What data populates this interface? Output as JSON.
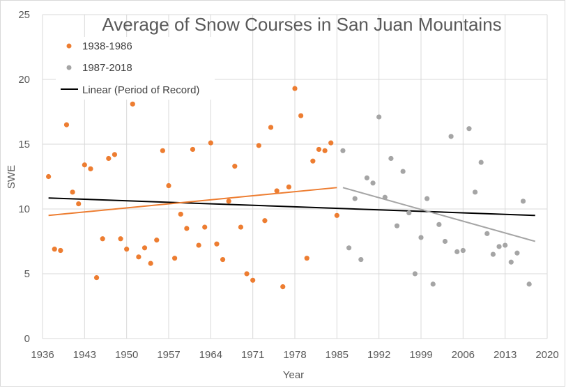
{
  "chart_data": {
    "type": "scatter",
    "title": "Average of Snow Courses in San Juan Mountains",
    "xlabel": "Year",
    "ylabel": "SWE",
    "xlim": [
      1936,
      2020
    ],
    "ylim": [
      0,
      25
    ],
    "x_ticks": [
      1936,
      1943,
      1950,
      1957,
      1964,
      1971,
      1978,
      1985,
      1992,
      1999,
      2006,
      2013,
      2020
    ],
    "y_ticks": [
      0,
      5,
      10,
      15,
      20,
      25
    ],
    "grid": {
      "x": true,
      "y": true
    },
    "legend_position": "top-left",
    "series": [
      {
        "name": "1938-1986",
        "color": "#ED7D31",
        "points": [
          [
            1937,
            12.5
          ],
          [
            1938,
            6.9
          ],
          [
            1939,
            6.8
          ],
          [
            1940,
            16.5
          ],
          [
            1941,
            11.3
          ],
          [
            1942,
            10.4
          ],
          [
            1943,
            13.4
          ],
          [
            1944,
            13.1
          ],
          [
            1945,
            4.7
          ],
          [
            1946,
            7.7
          ],
          [
            1947,
            13.9
          ],
          [
            1948,
            14.2
          ],
          [
            1949,
            7.7
          ],
          [
            1950,
            6.9
          ],
          [
            1951,
            18.1
          ],
          [
            1952,
            6.3
          ],
          [
            1953,
            7.0
          ],
          [
            1954,
            5.8
          ],
          [
            1955,
            7.6
          ],
          [
            1956,
            14.5
          ],
          [
            1957,
            11.8
          ],
          [
            1958,
            6.2
          ],
          [
            1959,
            9.6
          ],
          [
            1960,
            8.5
          ],
          [
            1961,
            14.6
          ],
          [
            1962,
            7.2
          ],
          [
            1963,
            8.6
          ],
          [
            1964,
            15.1
          ],
          [
            1965,
            7.3
          ],
          [
            1966,
            6.1
          ],
          [
            1967,
            10.6
          ],
          [
            1968,
            13.3
          ],
          [
            1969,
            8.6
          ],
          [
            1970,
            5.0
          ],
          [
            1971,
            4.5
          ],
          [
            1972,
            14.9
          ],
          [
            1973,
            9.1
          ],
          [
            1974,
            16.3
          ],
          [
            1975,
            11.4
          ],
          [
            1976,
            4.0
          ],
          [
            1977,
            11.7
          ],
          [
            1978,
            19.3
          ],
          [
            1979,
            17.2
          ],
          [
            1980,
            6.2
          ],
          [
            1981,
            13.7
          ],
          [
            1982,
            14.6
          ],
          [
            1983,
            14.5
          ],
          [
            1984,
            15.1
          ],
          [
            1985,
            9.5
          ]
        ]
      },
      {
        "name": "1987-2018",
        "color": "#A5A5A5",
        "points": [
          [
            1986,
            14.5
          ],
          [
            1987,
            7.0
          ],
          [
            1988,
            10.8
          ],
          [
            1989,
            6.1
          ],
          [
            1990,
            12.4
          ],
          [
            1991,
            12.0
          ],
          [
            1992,
            17.1
          ],
          [
            1993,
            10.9
          ],
          [
            1994,
            13.9
          ],
          [
            1995,
            8.7
          ],
          [
            1996,
            12.9
          ],
          [
            1997,
            9.7
          ],
          [
            1998,
            5.0
          ],
          [
            1999,
            7.8
          ],
          [
            2000,
            10.8
          ],
          [
            2001,
            4.2
          ],
          [
            2002,
            8.8
          ],
          [
            2003,
            7.5
          ],
          [
            2004,
            15.6
          ],
          [
            2005,
            6.7
          ],
          [
            2006,
            6.8
          ],
          [
            2007,
            16.2
          ],
          [
            2008,
            11.3
          ],
          [
            2009,
            13.6
          ],
          [
            2010,
            8.1
          ],
          [
            2011,
            6.5
          ],
          [
            2012,
            7.1
          ],
          [
            2013,
            7.2
          ],
          [
            2014,
            5.9
          ],
          [
            2015,
            6.6
          ],
          [
            2016,
            10.6
          ],
          [
            2017,
            4.2
          ]
        ]
      }
    ],
    "trendlines": [
      {
        "name": "Linear (Period of Record)",
        "color": "#000000",
        "from": [
          1937,
          10.85
        ],
        "to": [
          2018,
          9.5
        ],
        "in_legend": true
      },
      {
        "color": "#ED7D31",
        "from": [
          1937,
          9.5
        ],
        "to": [
          1985,
          11.65
        ],
        "in_legend": false
      },
      {
        "color": "#A5A5A5",
        "from": [
          1986,
          11.65
        ],
        "to": [
          2018,
          7.5
        ],
        "in_legend": false
      }
    ]
  }
}
